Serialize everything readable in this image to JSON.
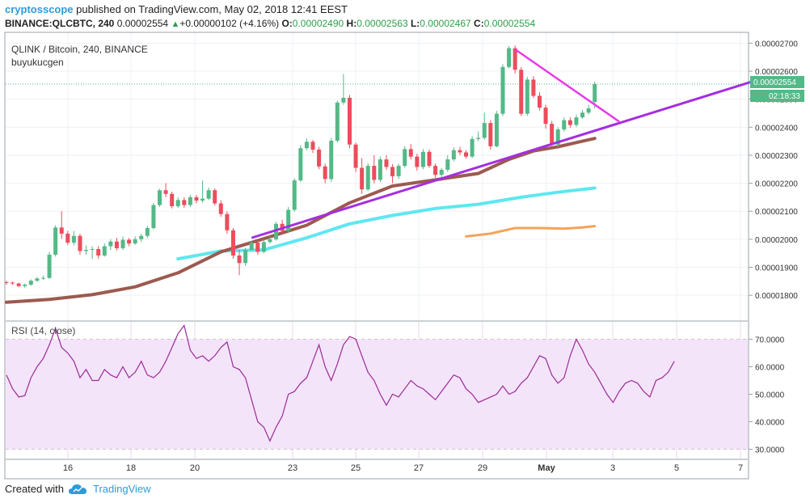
{
  "header": {
    "author": "cryptosscope",
    "published": "published on TradingView.com, May 02, 2018 12:41 EEST",
    "symbol": "BINANCE:QLCBTC, 240",
    "last": "0.00002554",
    "change": "+0.00000102 (+4.16%)",
    "o_label": "O:",
    "o": "0.00002490",
    "h_label": "H:",
    "h": "0.00002563",
    "l_label": "L:",
    "l": "0.00002467",
    "c_label": "C:",
    "c": "0.00002554"
  },
  "legend": {
    "title": "QLINK / Bitcoin, 240, BINANCE",
    "user": "buyukucgen",
    "rsi": "RSI (14, close)"
  },
  "price_badge": "0.00002554",
  "timer_badge": "02:18:33",
  "colors": {
    "up": "#53b987",
    "down": "#eb4d5c",
    "ma_fast": "#9c5a4f",
    "ma_mid": "#5ee7f0",
    "ma_slow": "#f5a35a",
    "trend_purple": "#a52ee0",
    "trend_magenta": "#e83ae6",
    "rsi_line": "#9b2a98",
    "rsi_band": "#f4e4fa",
    "accent": "#2e9bd6"
  },
  "chart_data": {
    "type": "candlestick",
    "y_ticks": [
      "0.00002700",
      "0.00002600",
      "0.00002500",
      "0.00002400",
      "0.00002300",
      "0.00002200",
      "0.00002100",
      "0.00002000",
      "0.00001900",
      "0.00001800"
    ],
    "x_ticks": [
      "16",
      "18",
      "20",
      "23",
      "25",
      "27",
      "29",
      "May",
      "3",
      "5",
      "7"
    ],
    "rsi_ticks": [
      "70.0000",
      "60.0000",
      "50.0000",
      "40.0000",
      "30.0000"
    ],
    "rsi_band": [
      30,
      70
    ],
    "candles": [
      [
        1.847,
        1.845,
        1.852,
        1.838
      ],
      [
        1.845,
        1.842,
        1.85,
        1.837
      ],
      [
        1.842,
        1.833,
        1.845,
        1.829
      ],
      [
        1.833,
        1.838,
        1.842,
        1.826
      ],
      [
        1.838,
        1.852,
        1.857,
        1.834
      ],
      [
        1.852,
        1.86,
        1.865,
        1.848
      ],
      [
        1.86,
        1.862,
        1.87,
        1.855
      ],
      [
        1.862,
        1.945,
        1.955,
        1.859
      ],
      [
        1.945,
        2.042,
        2.05,
        1.938
      ],
      [
        2.042,
        2.02,
        2.1,
        2.002
      ],
      [
        2.02,
        1.988,
        2.03,
        1.98
      ],
      [
        1.988,
        2.012,
        2.03,
        1.978
      ],
      [
        2.012,
        1.958,
        2.02,
        1.945
      ],
      [
        1.958,
        1.962,
        1.978,
        1.945
      ],
      [
        1.962,
        1.965,
        1.975,
        1.93
      ],
      [
        1.965,
        1.942,
        1.975,
        1.93
      ],
      [
        1.942,
        1.975,
        1.985,
        1.938
      ],
      [
        1.975,
        1.992,
        2.0,
        1.962
      ],
      [
        1.992,
        1.968,
        2.005,
        1.96
      ],
      [
        1.968,
        1.998,
        2.01,
        1.962
      ],
      [
        1.998,
        1.985,
        2.005,
        1.975
      ],
      [
        1.985,
        2.0,
        2.01,
        1.98
      ],
      [
        2.0,
        2.012,
        2.02,
        1.99
      ],
      [
        2.012,
        2.04,
        2.048,
        2.005
      ],
      [
        2.04,
        2.122,
        2.13,
        2.035
      ],
      [
        2.122,
        2.175,
        2.18,
        2.115
      ],
      [
        2.175,
        2.162,
        2.2,
        2.15
      ],
      [
        2.162,
        2.118,
        2.17,
        2.11
      ],
      [
        2.118,
        2.14,
        2.15,
        2.112
      ],
      [
        2.14,
        2.122,
        2.15,
        2.112
      ],
      [
        2.122,
        2.15,
        2.158,
        2.115
      ],
      [
        2.15,
        2.138,
        2.158,
        2.128
      ],
      [
        2.138,
        2.145,
        2.21,
        2.13
      ],
      [
        2.145,
        2.175,
        2.185,
        2.14
      ],
      [
        2.175,
        2.128,
        2.182,
        2.12
      ],
      [
        2.128,
        2.09,
        2.14,
        2.08
      ],
      [
        2.09,
        2.032,
        2.1,
        2.02
      ],
      [
        2.032,
        1.942,
        2.04,
        1.93
      ],
      [
        1.942,
        1.915,
        1.962,
        1.872
      ],
      [
        1.915,
        1.962,
        1.97,
        1.905
      ],
      [
        1.962,
        1.988,
        1.995,
        1.958
      ],
      [
        1.988,
        1.955,
        1.998,
        1.945
      ],
      [
        1.955,
        1.99,
        2.0,
        1.95
      ],
      [
        1.99,
        2.0,
        2.01,
        1.985
      ],
      [
        2.0,
        2.055,
        2.062,
        1.995
      ],
      [
        2.055,
        2.03,
        2.07,
        2.02
      ],
      [
        2.03,
        2.105,
        2.115,
        2.025
      ],
      [
        2.105,
        2.21,
        2.218,
        2.098
      ],
      [
        2.21,
        2.325,
        2.335,
        2.205
      ],
      [
        2.325,
        2.348,
        2.36,
        2.318
      ],
      [
        2.348,
        2.32,
        2.355,
        2.308
      ],
      [
        2.32,
        2.26,
        2.33,
        2.25
      ],
      [
        2.26,
        2.215,
        2.27,
        2.2
      ],
      [
        2.215,
        2.352,
        2.362,
        2.205
      ],
      [
        2.352,
        2.488,
        2.495,
        2.345
      ],
      [
        2.488,
        2.505,
        2.59,
        2.48
      ],
      [
        2.505,
        2.338,
        2.515,
        2.325
      ],
      [
        2.338,
        2.255,
        2.345,
        2.24
      ],
      [
        2.255,
        2.178,
        2.29,
        2.162
      ],
      [
        2.178,
        2.262,
        2.272,
        2.172
      ],
      [
        2.262,
        2.212,
        2.3,
        2.2
      ],
      [
        2.212,
        2.285,
        2.295,
        2.205
      ],
      [
        2.285,
        2.258,
        2.3,
        2.248
      ],
      [
        2.258,
        2.225,
        2.268,
        2.2
      ],
      [
        2.225,
        2.262,
        2.27,
        2.215
      ],
      [
        2.262,
        2.322,
        2.332,
        2.255
      ],
      [
        2.322,
        2.295,
        2.34,
        2.285
      ],
      [
        2.295,
        2.258,
        2.305,
        2.245
      ],
      [
        2.258,
        2.312,
        2.322,
        2.25
      ],
      [
        2.312,
        2.262,
        2.32,
        2.255
      ],
      [
        2.262,
        2.23,
        2.27,
        2.22
      ],
      [
        2.23,
        2.248,
        2.255,
        2.222
      ],
      [
        2.248,
        2.285,
        2.3,
        2.24
      ],
      [
        2.285,
        2.318,
        2.328,
        2.278
      ],
      [
        2.318,
        2.31,
        2.33,
        2.3
      ],
      [
        2.31,
        2.295,
        2.318,
        2.288
      ],
      [
        2.295,
        2.358,
        2.368,
        2.29
      ],
      [
        2.358,
        2.362,
        2.385,
        2.35
      ],
      [
        2.362,
        2.415,
        2.452,
        2.356
      ],
      [
        2.415,
        2.332,
        2.425,
        2.32
      ],
      [
        2.332,
        2.448,
        2.458,
        2.328
      ],
      [
        2.448,
        2.615,
        2.625,
        2.44
      ],
      [
        2.615,
        2.682,
        2.69,
        2.61
      ],
      [
        2.682,
        2.605,
        2.692,
        2.592
      ],
      [
        2.605,
        2.448,
        2.615,
        2.44
      ],
      [
        2.448,
        2.57,
        2.58,
        2.44
      ],
      [
        2.57,
        2.512,
        2.582,
        2.505
      ],
      [
        2.512,
        2.47,
        2.525,
        2.46
      ],
      [
        2.47,
        2.412,
        2.48,
        2.395
      ],
      [
        2.412,
        2.338,
        2.422,
        2.33
      ],
      [
        2.338,
        2.392,
        2.4,
        2.33
      ],
      [
        2.392,
        2.425,
        2.435,
        2.385
      ],
      [
        2.425,
        2.408,
        2.435,
        2.398
      ],
      [
        2.408,
        2.435,
        2.445,
        2.4
      ],
      [
        2.435,
        2.452,
        2.462,
        2.43
      ],
      [
        2.452,
        2.467,
        2.48,
        2.445
      ],
      [
        2.49,
        2.554,
        2.563,
        2.467
      ]
    ],
    "ma_fast": [
      [
        0,
        1.775
      ],
      [
        7,
        1.785
      ],
      [
        14,
        1.802
      ],
      [
        21,
        1.83
      ],
      [
        28,
        1.88
      ],
      [
        35,
        1.955
      ],
      [
        42,
        2.002
      ],
      [
        49,
        2.05
      ],
      [
        56,
        2.13
      ],
      [
        63,
        2.19
      ],
      [
        70,
        2.212
      ],
      [
        77,
        2.235
      ],
      [
        82,
        2.285
      ],
      [
        86,
        2.315
      ],
      [
        90,
        2.33
      ],
      [
        94,
        2.35
      ],
      [
        96,
        2.36
      ]
    ],
    "ma_mid": [
      [
        28,
        1.93
      ],
      [
        35,
        1.958
      ],
      [
        42,
        1.962
      ],
      [
        49,
        2.005
      ],
      [
        56,
        2.055
      ],
      [
        63,
        2.085
      ],
      [
        70,
        2.11
      ],
      [
        77,
        2.125
      ],
      [
        84,
        2.15
      ],
      [
        90,
        2.168
      ],
      [
        96,
        2.183
      ]
    ],
    "ma_slow": [
      [
        75,
        2.01
      ],
      [
        79,
        2.02
      ],
      [
        83,
        2.04
      ],
      [
        87,
        2.04
      ],
      [
        91,
        2.038
      ],
      [
        94,
        2.042
      ],
      [
        96,
        2.047
      ]
    ],
    "trend_purple": [
      [
        40,
        2.005
      ],
      [
        124.2,
        2.58
      ]
    ],
    "trend_magenta": [
      [
        83,
        2.678
      ],
      [
        100,
        2.42
      ]
    ],
    "rsi": [
      57,
      52,
      49,
      49.5,
      56,
      60,
      63,
      68,
      74,
      67,
      65,
      62,
      56,
      59,
      55,
      55,
      59,
      57,
      56,
      60,
      56,
      58,
      62,
      57,
      56,
      58,
      62,
      67,
      72,
      75,
      66,
      63,
      64,
      62,
      64,
      67,
      69,
      60,
      59,
      56,
      48,
      40,
      38,
      33,
      38,
      42,
      50,
      51,
      54,
      56,
      62,
      68,
      60,
      55,
      61,
      68,
      71,
      70,
      64,
      58,
      55,
      50,
      46,
      50,
      49,
      52,
      55,
      53,
      52,
      50,
      48,
      51,
      54,
      57,
      56,
      52,
      50,
      47,
      48,
      49,
      50,
      53,
      50,
      51,
      54,
      56,
      60,
      64,
      63,
      57,
      54,
      56,
      64,
      70,
      66,
      61,
      58,
      54,
      50,
      47,
      51,
      54,
      55,
      54,
      51,
      49,
      55,
      56,
      58,
      62
    ]
  },
  "footer": {
    "created": "Created with",
    "brand": "TradingView"
  }
}
